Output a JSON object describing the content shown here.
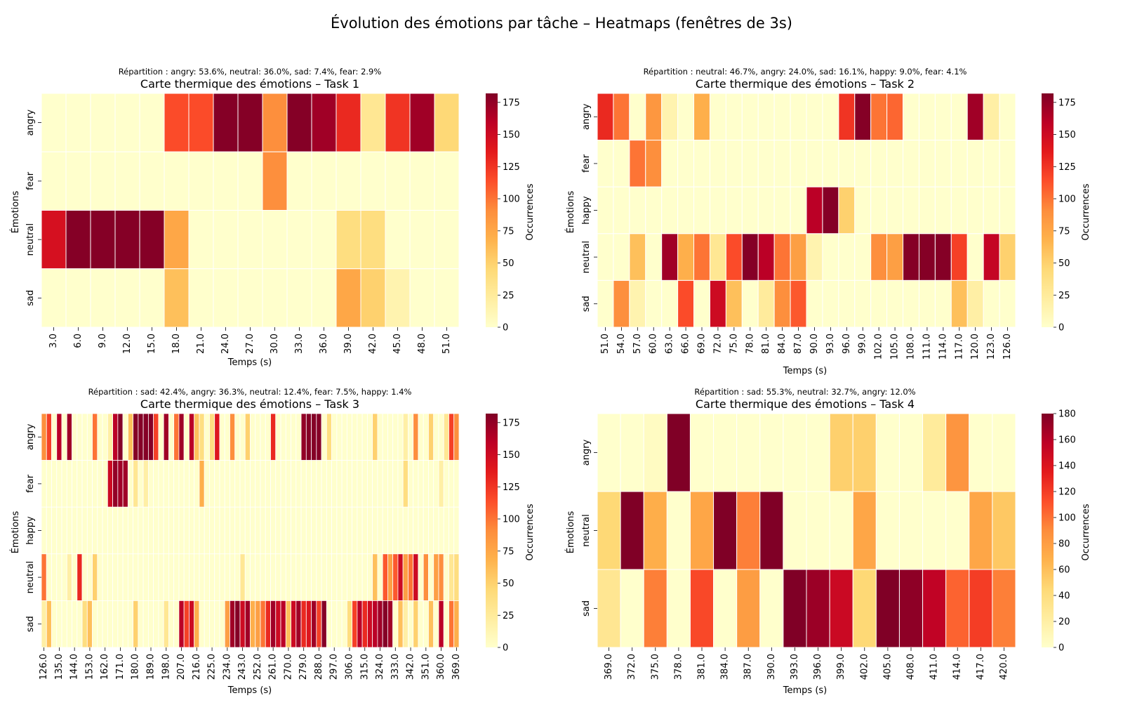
{
  "figure": {
    "title": "Évolution des émotions par tâche – Heatmaps (fenêtres de 3s)"
  },
  "colorscale": {
    "name": "YlOrRd",
    "stops": [
      "#ffffcc",
      "#ffeda0",
      "#fed976",
      "#feb24c",
      "#fd8d3c",
      "#fc4e2a",
      "#e31a1c",
      "#bd0026",
      "#800026"
    ]
  },
  "chart_data": [
    {
      "type": "heatmap",
      "title": "Carte thermique des émotions – Task 1",
      "subtitle": "Répartition : angry: 53.6%, neutral: 36.0%, sad: 7.4%, fear: 2.9%",
      "xlabel": "Temps (s)",
      "ylabel": "Émotions",
      "colorbar_label": "Occurrences",
      "rows": [
        "angry",
        "fear",
        "neutral",
        "sad"
      ],
      "columns": [
        "3.0",
        "6.0",
        "9.0",
        "12.0",
        "15.0",
        "18.0",
        "21.0",
        "24.0",
        "27.0",
        "30.0",
        "33.0",
        "36.0",
        "39.0",
        "42.0",
        "45.0",
        "48.0",
        "51.0"
      ],
      "values": [
        [
          0,
          0,
          0,
          0,
          0,
          115,
          115,
          180,
          180,
          90,
          180,
          170,
          130,
          30,
          125,
          170,
          45
        ],
        [
          0,
          0,
          0,
          0,
          0,
          0,
          0,
          0,
          0,
          90,
          0,
          0,
          0,
          0,
          0,
          0,
          0
        ],
        [
          145,
          180,
          180,
          180,
          180,
          75,
          0,
          0,
          0,
          0,
          0,
          0,
          40,
          40,
          0,
          0,
          0
        ],
        [
          0,
          0,
          0,
          0,
          0,
          60,
          0,
          0,
          0,
          0,
          0,
          0,
          75,
          50,
          15,
          0,
          0
        ]
      ],
      "vmin": 0,
      "vmax": 182,
      "colorbar_ticks": [
        0,
        25,
        50,
        75,
        100,
        125,
        150,
        175
      ]
    },
    {
      "type": "heatmap",
      "title": "Carte thermique des émotions – Task 2",
      "subtitle": "Répartition : neutral: 46.7%, angry: 24.0%, sad: 16.1%, happy: 9.0%, fear: 4.1%",
      "xlabel": "Temps (s)",
      "ylabel": "Émotions",
      "colorbar_label": "Occurrences",
      "rows": [
        "angry",
        "fear",
        "happy",
        "neutral",
        "sad"
      ],
      "columns": [
        "51.0",
        "54.0",
        "57.0",
        "60.0",
        "63.0",
        "66.0",
        "69.0",
        "72.0",
        "75.0",
        "78.0",
        "81.0",
        "84.0",
        "87.0",
        "90.0",
        "93.0",
        "96.0",
        "99.0",
        "102.0",
        "105.0",
        "108.0",
        "111.0",
        "114.0",
        "117.0",
        "120.0",
        "123.0",
        "126.0"
      ],
      "values": [
        [
          130,
          100,
          0,
          85,
          15,
          0,
          70,
          0,
          0,
          0,
          0,
          0,
          0,
          0,
          0,
          125,
          180,
          100,
          105,
          0,
          0,
          0,
          0,
          170,
          20,
          0
        ],
        [
          0,
          0,
          100,
          90,
          0,
          0,
          0,
          0,
          0,
          0,
          0,
          0,
          0,
          0,
          0,
          0,
          0,
          0,
          0,
          0,
          0,
          0,
          0,
          0,
          0,
          0
        ],
        [
          0,
          0,
          0,
          0,
          0,
          0,
          0,
          0,
          0,
          0,
          0,
          0,
          0,
          160,
          180,
          50,
          0,
          0,
          0,
          0,
          0,
          0,
          0,
          0,
          0,
          0
        ],
        [
          0,
          0,
          60,
          0,
          170,
          70,
          100,
          30,
          115,
          180,
          160,
          100,
          80,
          15,
          0,
          0,
          0,
          90,
          80,
          180,
          180,
          180,
          120,
          0,
          155,
          50
        ],
        [
          0,
          90,
          15,
          0,
          0,
          115,
          0,
          150,
          60,
          0,
          25,
          90,
          110,
          0,
          0,
          0,
          0,
          0,
          0,
          0,
          0,
          0,
          60,
          20,
          0,
          0
        ]
      ],
      "vmin": 0,
      "vmax": 182,
      "colorbar_ticks": [
        0,
        25,
        50,
        75,
        100,
        125,
        150,
        175
      ]
    },
    {
      "type": "heatmap",
      "title": "Carte thermique des émotions – Task 3",
      "subtitle": "Répartition : sad: 42.4%, angry: 36.3%, neutral: 12.4%, fear: 7.5%, happy: 1.4%",
      "xlabel": "Temps (s)",
      "ylabel": "Émotions",
      "colorbar_label": "Occurrences",
      "rows": [
        "angry",
        "fear",
        "happy",
        "neutral",
        "sad"
      ],
      "columns": [
        "126.0",
        "135.0",
        "144.0",
        "153.0",
        "162.0",
        "171.0",
        "180.0",
        "189.0",
        "198.0",
        "207.0",
        "216.0",
        "225.0",
        "234.0",
        "243.0",
        "252.0",
        "261.0",
        "270.0",
        "279.0",
        "288.0",
        "297.0",
        "306.0",
        "315.0",
        "324.0",
        "333.0",
        "342.0",
        "351.0",
        "360.0",
        "369.0"
      ],
      "n_columns": 82,
      "values": [
        [
          90,
          120,
          0,
          160,
          0,
          170,
          0,
          0,
          0,
          0,
          100,
          0,
          0,
          20,
          160,
          180,
          0,
          60,
          180,
          180,
          180,
          180,
          120,
          0,
          170,
          0,
          100,
          170,
          0,
          160,
          60,
          40,
          0,
          40,
          140,
          0,
          0,
          90,
          0,
          0,
          50,
          0,
          0,
          0,
          0,
          130,
          0,
          0,
          0,
          0,
          0,
          175,
          180,
          180,
          180,
          0,
          40,
          0,
          0,
          0,
          0,
          0,
          0,
          0,
          0,
          50,
          0,
          0,
          0,
          0,
          0,
          20,
          0,
          90,
          0,
          0,
          50,
          0,
          0,
          30,
          120,
          90
        ],
        [
          0,
          0,
          0,
          0,
          0,
          0,
          0,
          0,
          0,
          0,
          0,
          0,
          0,
          150,
          175,
          170,
          170,
          0,
          30,
          0,
          20,
          0,
          0,
          0,
          0,
          0,
          0,
          0,
          0,
          0,
          0,
          70,
          0,
          0,
          0,
          0,
          0,
          0,
          0,
          0,
          0,
          0,
          0,
          0,
          0,
          0,
          0,
          0,
          0,
          0,
          0,
          0,
          0,
          0,
          0,
          0,
          0,
          0,
          0,
          0,
          0,
          0,
          0,
          0,
          0,
          0,
          0,
          0,
          0,
          0,
          0,
          40,
          0,
          0,
          0,
          0,
          0,
          0,
          20,
          0,
          0,
          0
        ],
        [
          0,
          0,
          0,
          0,
          0,
          0,
          0,
          0,
          0,
          0,
          0,
          0,
          0,
          0,
          0,
          0,
          0,
          0,
          0,
          0,
          0,
          0,
          0,
          0,
          0,
          0,
          0,
          0,
          0,
          0,
          0,
          0,
          0,
          0,
          0,
          0,
          0,
          0,
          0,
          0,
          0,
          0,
          0,
          0,
          0,
          0,
          0,
          0,
          0,
          0,
          0,
          0,
          0,
          0,
          0,
          0,
          0,
          0,
          0,
          0,
          0,
          0,
          0,
          0,
          0,
          0,
          0,
          0,
          0,
          0,
          0,
          0,
          0,
          0,
          0,
          0,
          0,
          0,
          0,
          0,
          0,
          0
        ],
        [
          100,
          0,
          0,
          0,
          0,
          20,
          0,
          130,
          0,
          0,
          50,
          0,
          0,
          0,
          0,
          0,
          0,
          0,
          0,
          0,
          0,
          0,
          0,
          0,
          0,
          0,
          0,
          0,
          0,
          0,
          0,
          0,
          0,
          0,
          0,
          0,
          0,
          0,
          0,
          30,
          0,
          0,
          0,
          0,
          0,
          0,
          0,
          0,
          0,
          0,
          0,
          0,
          0,
          0,
          0,
          0,
          0,
          0,
          0,
          0,
          0,
          0,
          0,
          0,
          0,
          60,
          0,
          110,
          80,
          110,
          150,
          80,
          100,
          150,
          0,
          90,
          0,
          80,
          90,
          0,
          30,
          40
        ],
        [
          20,
          60,
          0,
          0,
          0,
          0,
          0,
          0,
          40,
          60,
          0,
          0,
          0,
          0,
          0,
          0,
          0,
          0,
          50,
          0,
          0,
          0,
          0,
          0,
          30,
          0,
          0,
          160,
          120,
          150,
          70,
          0,
          0,
          0,
          0,
          0,
          80,
          170,
          180,
          150,
          170,
          70,
          80,
          100,
          130,
          170,
          150,
          160,
          60,
          150,
          170,
          130,
          140,
          170,
          120,
          180,
          0,
          0,
          0,
          0,
          40,
          120,
          160,
          130,
          150,
          160,
          170,
          180,
          170,
          0,
          60,
          20,
          0,
          50,
          0,
          0,
          60,
          0,
          160,
          0,
          100,
          70
        ]
      ],
      "vmin": 0,
      "vmax": 182,
      "colorbar_ticks": [
        0,
        25,
        50,
        75,
        100,
        125,
        150,
        175
      ]
    },
    {
      "type": "heatmap",
      "title": "Carte thermique des émotions – Task 4",
      "subtitle": "Répartition : sad: 55.3%, neutral: 32.7%, angry: 12.0%",
      "xlabel": "Temps (s)",
      "ylabel": "Émotions",
      "colorbar_label": "Occurrences",
      "rows": [
        "angry",
        "neutral",
        "sad"
      ],
      "columns": [
        "369.0",
        "372.0",
        "375.0",
        "378.0",
        "381.0",
        "384.0",
        "387.0",
        "390.0",
        "393.0",
        "396.0",
        "399.0",
        "402.0",
        "405.0",
        "408.0",
        "411.0",
        "414.0",
        "417.0",
        "420.0"
      ],
      "values": [
        [
          0,
          0,
          5,
          180,
          0,
          0,
          0,
          0,
          0,
          0,
          50,
          50,
          0,
          0,
          25,
          85,
          0,
          0
        ],
        [
          45,
          180,
          70,
          0,
          75,
          180,
          95,
          180,
          0,
          0,
          0,
          75,
          0,
          0,
          0,
          0,
          75,
          55
        ],
        [
          30,
          0,
          95,
          0,
          115,
          0,
          80,
          0,
          180,
          170,
          150,
          45,
          180,
          175,
          155,
          105,
          120,
          95
        ]
      ],
      "vmin": 0,
      "vmax": 180,
      "colorbar_ticks": [
        0,
        20,
        40,
        60,
        80,
        100,
        120,
        140,
        160,
        180
      ]
    }
  ]
}
